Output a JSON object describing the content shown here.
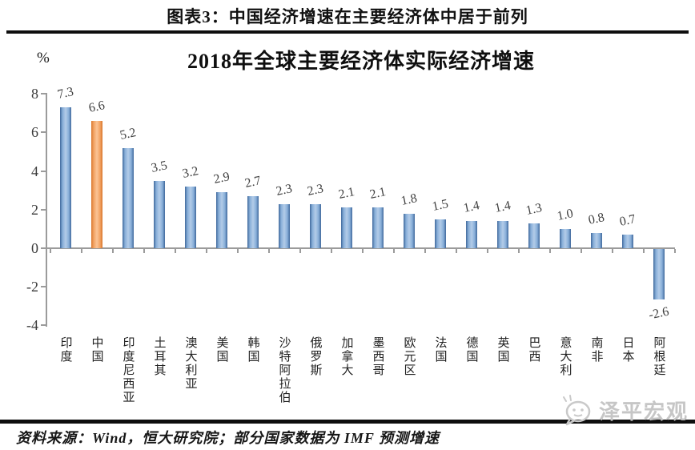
{
  "page": {
    "header_title": "图表3：中国经济增速在主要经济体中居于前列",
    "footer_source": "资料来源：Wind，恒大研究院；部分国家数据为 IMF 预测增速",
    "watermark_text": "泽平宏观"
  },
  "chart_data": {
    "type": "bar",
    "title": "2018年全球主要经济体实际经济增速",
    "unit_label": "%",
    "categories": [
      "印度",
      "中国",
      "印度尼西亚",
      "土耳其",
      "澳大利亚",
      "美国",
      "韩国",
      "沙特阿拉伯",
      "俄罗斯",
      "加拿大",
      "墨西哥",
      "欧元区",
      "法国",
      "德国",
      "英国",
      "巴西",
      "意大利",
      "南非",
      "日本",
      "阿根廷"
    ],
    "values": [
      7.3,
      6.6,
      5.2,
      3.5,
      3.2,
      2.9,
      2.7,
      2.3,
      2.3,
      2.1,
      2.1,
      1.8,
      1.5,
      1.4,
      1.4,
      1.3,
      1.0,
      0.8,
      0.7,
      -2.6
    ],
    "highlight_index": 1,
    "yticks": [
      8,
      6,
      4,
      2,
      0,
      -2,
      -4
    ],
    "ylim": [
      -4,
      8
    ],
    "grid": false,
    "legend_position": "none",
    "colors": {
      "bar": "#4f81bd",
      "bar_highlight": "#e8833c",
      "axis": "#9b9b9b",
      "label": "#3f3f3f"
    }
  }
}
